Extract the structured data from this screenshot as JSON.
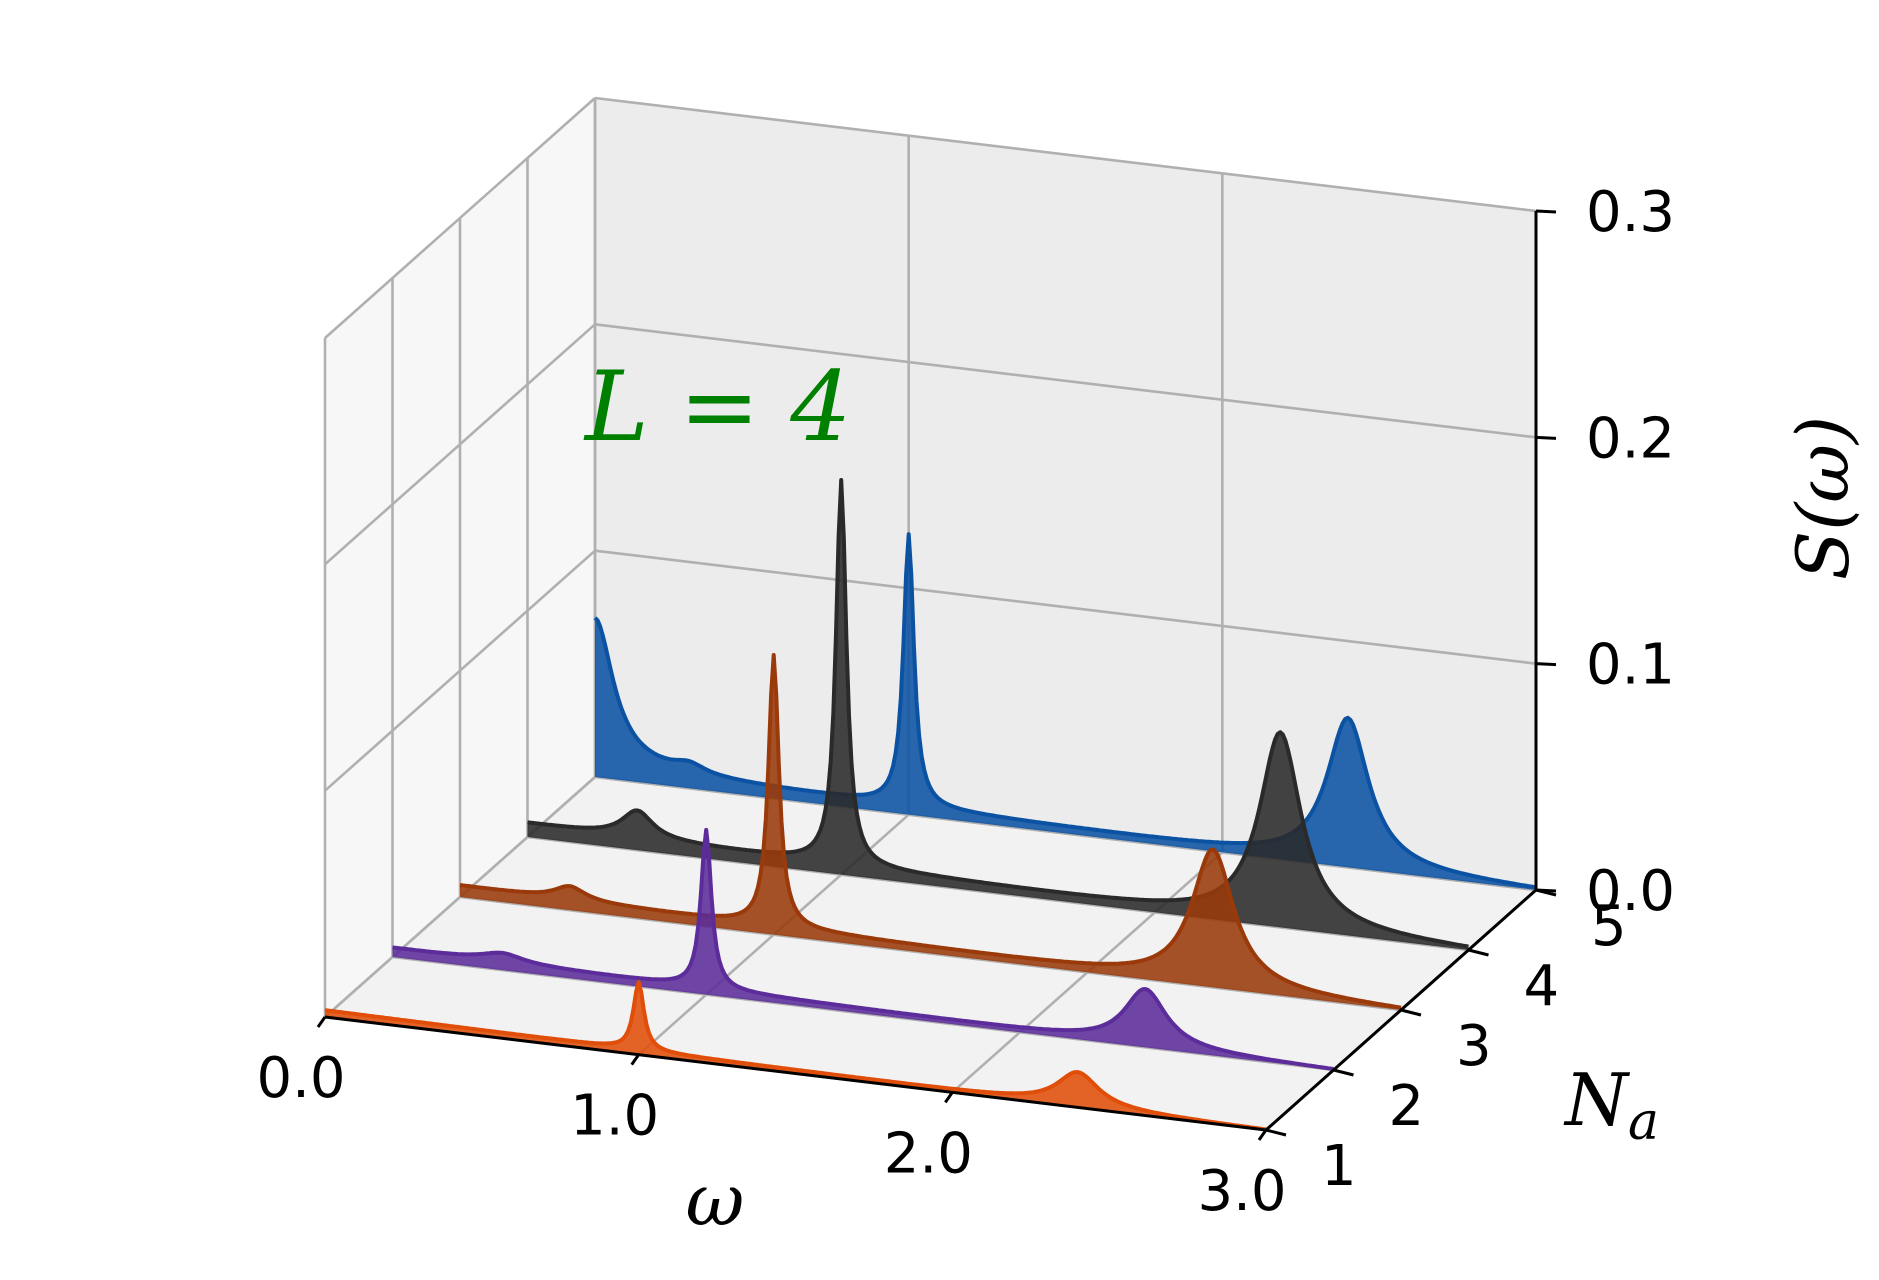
{
  "chart_data": {
    "type": "area",
    "projection": "3d",
    "annotation": {
      "text": "L = 4",
      "color": "#008000"
    },
    "xlabel": "ω",
    "ylabel": "N_a",
    "zlabel": "S(ω)",
    "xlim": [
      0,
      3
    ],
    "ylim": [
      1,
      5
    ],
    "zlim": [
      0,
      0.3
    ],
    "xticks": [
      "0.0",
      "1.0",
      "2.0",
      "3.0"
    ],
    "yticks": [
      "1",
      "2",
      "3",
      "4",
      "5"
    ],
    "zticks": [
      "0.0",
      "0.1",
      "0.2",
      "0.3"
    ],
    "grid": true,
    "series": [
      {
        "N_a": 1,
        "color": "#e04e0a",
        "peaks": [
          {
            "x": 1.0,
            "h": 0.03,
            "w": 0.02
          },
          {
            "x": 2.4,
            "h": 0.015,
            "w": 0.08
          }
        ],
        "base": [
          0.003,
          0.0
        ]
      },
      {
        "N_a": 2,
        "color": "#5b2c9a",
        "peaks": [
          {
            "x": 0.35,
            "h": 0.004,
            "w": 0.08
          },
          {
            "x": 1.0,
            "h": 0.07,
            "w": 0.02
          },
          {
            "x": 2.4,
            "h": 0.025,
            "w": 0.08
          }
        ],
        "base": [
          0.004,
          0.0
        ]
      },
      {
        "N_a": 3,
        "color": "#9a3a0a",
        "peaks": [
          {
            "x": 0.35,
            "h": 0.006,
            "w": 0.06
          },
          {
            "x": 1.0,
            "h": 0.12,
            "w": 0.02
          },
          {
            "x": 2.4,
            "h": 0.06,
            "w": 0.08
          }
        ],
        "base": [
          0.005,
          0.0
        ]
      },
      {
        "N_a": 4,
        "color": "#2a2a2a",
        "peaks": [
          {
            "x": 0.35,
            "h": 0.012,
            "w": 0.06
          },
          {
            "x": 1.0,
            "h": 0.17,
            "w": 0.02
          },
          {
            "x": 2.4,
            "h": 0.085,
            "w": 0.08
          }
        ],
        "base": [
          0.006,
          0.0
        ]
      },
      {
        "N_a": 5,
        "color": "#0b52a3",
        "peaks": [
          {
            "x": 0.0,
            "h": 0.065,
            "w": 0.07
          },
          {
            "x": 0.3,
            "h": 0.004,
            "w": 0.06
          },
          {
            "x": 1.0,
            "h": 0.12,
            "w": 0.02
          },
          {
            "x": 2.4,
            "h": 0.065,
            "w": 0.08
          }
        ],
        "base": [
          0.005,
          0.0
        ]
      }
    ]
  }
}
